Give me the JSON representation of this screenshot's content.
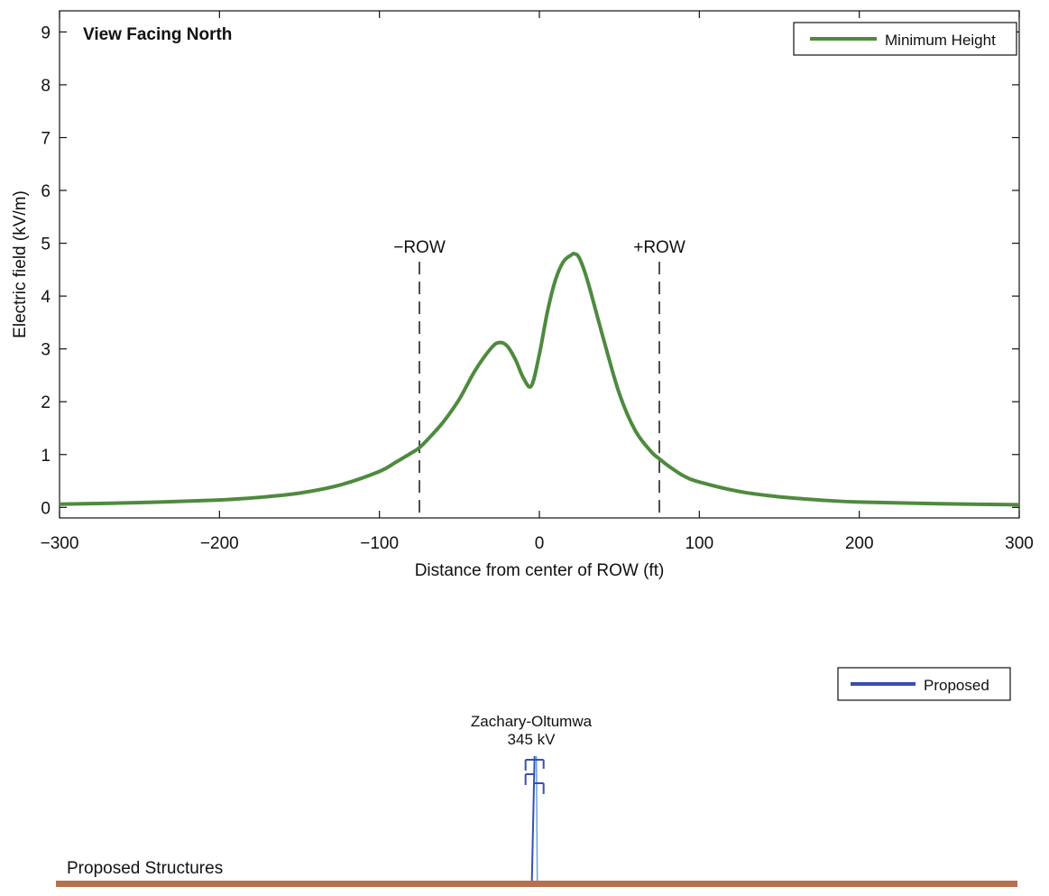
{
  "chart_data": [
    {
      "type": "line",
      "title": "View Facing North",
      "xlabel": "Distance from center of ROW (ft)",
      "ylabel": "Electric field (kV/m)",
      "xlim": [
        -300,
        300
      ],
      "ylim": [
        -0.2,
        9.4
      ],
      "x_ticks": [
        -300,
        -200,
        -100,
        0,
        100,
        200,
        300
      ],
      "x_tick_labels": [
        "−300",
        "−200",
        "−100",
        "0",
        "100",
        "200",
        "300"
      ],
      "y_ticks": [
        0,
        1,
        2,
        3,
        4,
        5,
        6,
        7,
        8,
        9
      ],
      "y_tick_labels": [
        "0",
        "1",
        "2",
        "3",
        "4",
        "5",
        "6",
        "7",
        "8",
        "9"
      ],
      "grid": false,
      "legend_position": "top-right",
      "series": [
        {
          "name": "Minimum Height",
          "color": "#4e8a3e",
          "x": [
            -300,
            -250,
            -200,
            -175,
            -150,
            -125,
            -100,
            -90,
            -80,
            -75,
            -70,
            -60,
            -50,
            -40,
            -30,
            -25,
            -20,
            -15,
            -10,
            -5,
            0,
            5,
            10,
            15,
            20,
            22,
            25,
            30,
            40,
            50,
            60,
            70,
            75,
            80,
            90,
            100,
            125,
            150,
            175,
            200,
            250,
            300
          ],
          "y": [
            0.06,
            0.09,
            0.14,
            0.19,
            0.27,
            0.42,
            0.68,
            0.85,
            1.03,
            1.13,
            1.28,
            1.62,
            2.05,
            2.6,
            3.02,
            3.12,
            3.05,
            2.8,
            2.45,
            2.3,
            2.9,
            3.7,
            4.3,
            4.65,
            4.78,
            4.8,
            4.72,
            4.3,
            3.2,
            2.15,
            1.45,
            1.05,
            0.92,
            0.8,
            0.6,
            0.48,
            0.3,
            0.2,
            0.14,
            0.1,
            0.07,
            0.05
          ]
        }
      ],
      "annotations": [
        {
          "text": "−ROW",
          "x": -75,
          "style": "dashed vertical line"
        },
        {
          "text": "+ROW",
          "x": 75,
          "style": "dashed vertical line"
        }
      ]
    },
    {
      "type": "diagram",
      "xlim": [
        -300,
        300
      ],
      "ground_label": "Proposed Structures",
      "ground_color": "#b8704a",
      "legend_position": "top-right",
      "series": [
        {
          "name": "Proposed",
          "color": "#3a4fae"
        }
      ],
      "structures": [
        {
          "label_line1": "Zachary-Oltumwa",
          "label_line2": "345 kV",
          "x": -3
        }
      ]
    }
  ]
}
